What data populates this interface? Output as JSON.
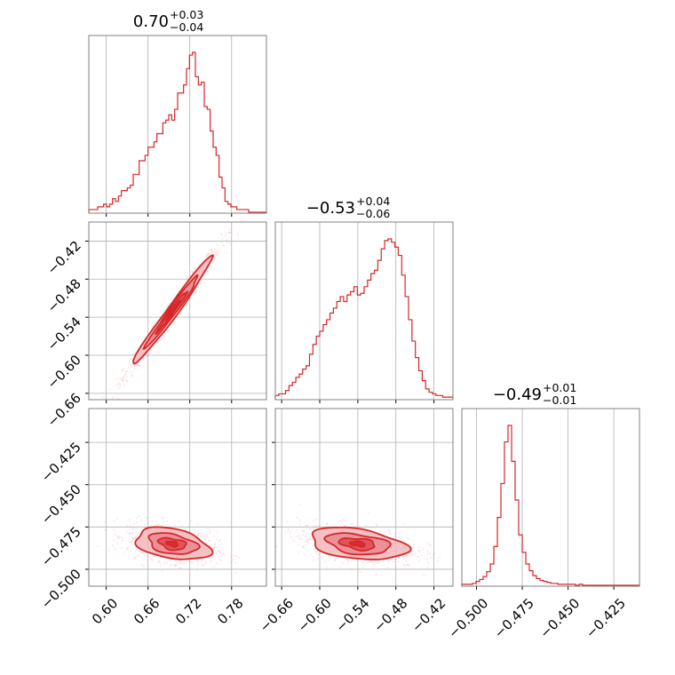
{
  "figure": {
    "accent_color": "#d62728",
    "light_fill": "#f2b8bc",
    "mid_fill": "#e98089",
    "sample_color": "#f4a6ad"
  },
  "chart_data": [
    {
      "type": "histogram",
      "name": "param-1-marginal",
      "title": {
        "median": "0.70",
        "plus": "+0.03",
        "minus": "−0.04"
      },
      "xlim": [
        0.575,
        0.83
      ],
      "xticks": [
        "0.60",
        "0.66",
        "0.72",
        "0.78"
      ],
      "xtick_values": [
        0.6,
        0.66,
        0.72,
        0.78
      ],
      "grid": true,
      "bin_edges_range": [
        0.575,
        0.83
      ],
      "counts": [
        1,
        1,
        1,
        2,
        2,
        3,
        2,
        3,
        5,
        4,
        6,
        8,
        8,
        9,
        10,
        14,
        14,
        19,
        19,
        21,
        24,
        24,
        26,
        29,
        29,
        33,
        34,
        36,
        34,
        38,
        44,
        44,
        47,
        53,
        58,
        59,
        50,
        47,
        48,
        39,
        38,
        30,
        24,
        21,
        13,
        9,
        4,
        3,
        2,
        2,
        1,
        1,
        1,
        1,
        0,
        0,
        0,
        0,
        0,
        0
      ]
    },
    {
      "type": "histogram",
      "name": "param-2-marginal",
      "title": {
        "median": "−0.53",
        "plus": "+0.04",
        "minus": "−0.06"
      },
      "xlim": [
        -0.67,
        -0.39
      ],
      "xticks": [
        "−0.66",
        "−0.60",
        "−0.54",
        "−0.48",
        "−0.42"
      ],
      "xtick_values": [
        -0.66,
        -0.6,
        -0.54,
        -0.48,
        -0.42
      ],
      "grid": true,
      "counts": [
        2,
        3,
        3,
        5,
        8,
        10,
        13,
        15,
        18,
        20,
        27,
        33,
        38,
        41,
        45,
        48,
        52,
        55,
        59,
        62,
        59,
        63,
        65,
        68,
        63,
        64,
        68,
        72,
        76,
        78,
        84,
        91,
        96,
        97,
        95,
        92,
        87,
        75,
        62,
        48,
        35,
        25,
        17,
        11,
        6,
        4,
        3,
        2,
        2,
        1,
        1,
        1
      ]
    },
    {
      "type": "histogram",
      "name": "param-3-marginal",
      "title": {
        "median": "−0.49",
        "plus": "+0.01",
        "minus": "−0.01"
      },
      "xlim": [
        -0.508,
        -0.411
      ],
      "xticks": [
        "−0.500",
        "−0.475",
        "−0.450",
        "−0.425"
      ],
      "xtick_values": [
        -0.5,
        -0.475,
        -0.45,
        -0.425
      ],
      "grid": true,
      "counts": [
        1,
        1,
        1,
        2,
        4,
        6,
        9,
        14,
        22,
        40,
        70,
        105,
        148,
        165,
        128,
        88,
        52,
        34,
        22,
        15,
        10,
        7,
        5,
        4,
        3,
        2,
        2,
        1,
        1,
        1,
        1,
        1,
        0,
        1,
        0,
        0,
        0,
        0,
        0,
        0,
        0,
        0,
        0,
        0,
        0,
        0,
        0,
        0,
        0,
        0
      ]
    },
    {
      "type": "contour",
      "name": "param-1-vs-param-2",
      "xlim": [
        0.575,
        0.83
      ],
      "ylim": [
        -0.67,
        -0.39
      ],
      "xtick_values": [
        0.6,
        0.66,
        0.72,
        0.78
      ],
      "yticks": [
        "−0.42",
        "−0.48",
        "−0.54",
        "−0.60",
        "−0.66"
      ],
      "ytick_values": [
        -0.42,
        -0.48,
        -0.54,
        -0.6,
        -0.66
      ],
      "grid": true,
      "density": {
        "center": [
          0.695,
          -0.53
        ],
        "sd_x": 0.03,
        "sd_y": 0.045,
        "correlation": 0.985
      }
    },
    {
      "type": "contour",
      "name": "param-1-vs-param-3",
      "xlim": [
        0.575,
        0.83
      ],
      "ylim": [
        -0.51,
        -0.405
      ],
      "xticks": [
        "0.60",
        "0.66",
        "0.72",
        "0.78"
      ],
      "xtick_values": [
        0.6,
        0.66,
        0.72,
        0.78
      ],
      "yticks": [
        "−0.425",
        "−0.450",
        "−0.475",
        "−0.500"
      ],
      "ytick_values": [
        -0.425,
        -0.45,
        -0.475,
        -0.5
      ],
      "grid": true,
      "density": {
        "center": [
          0.695,
          -0.485
        ],
        "sd_x": 0.028,
        "sd_y": 0.005,
        "correlation": -0.35
      }
    },
    {
      "type": "contour",
      "name": "param-2-vs-param-3",
      "xlim": [
        -0.67,
        -0.39
      ],
      "ylim": [
        -0.51,
        -0.405
      ],
      "xticks": [
        "−0.66",
        "−0.60",
        "−0.54",
        "−0.48",
        "−0.42"
      ],
      "xtick_values": [
        -0.66,
        -0.6,
        -0.54,
        -0.48,
        -0.42
      ],
      "ytick_values": [
        -0.425,
        -0.45,
        -0.475,
        -0.5
      ],
      "grid": true,
      "density": {
        "center": [
          -0.54,
          -0.485
        ],
        "sd_x": 0.04,
        "sd_y": 0.005,
        "correlation": -0.35
      }
    }
  ]
}
